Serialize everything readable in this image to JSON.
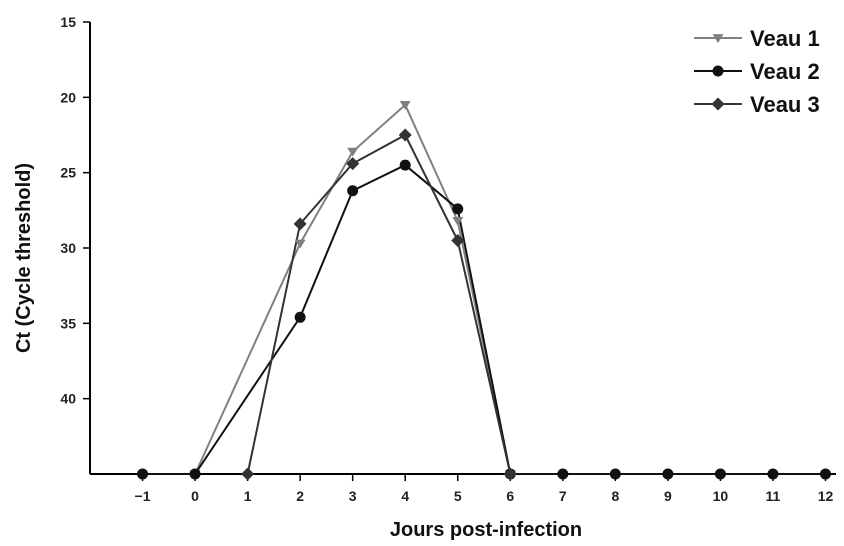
{
  "chart_data": {
    "type": "line",
    "title": "",
    "xlabel": "Jours post-infection",
    "ylabel": "Ct (Cycle threshold)",
    "x": [
      -1,
      0,
      1,
      2,
      3,
      4,
      5,
      6,
      7,
      8,
      9,
      10,
      11,
      12
    ],
    "x_tick_labels": [
      "−1",
      "0",
      "1",
      "2",
      "3",
      "4",
      "5",
      "6",
      "7",
      "8",
      "9",
      "10",
      "11",
      "12"
    ],
    "y_ticks": [
      15,
      20,
      25,
      30,
      35,
      40
    ],
    "ylim": [
      15,
      45
    ],
    "y_inverted": true,
    "grid": false,
    "legend_position": "top-right",
    "series": [
      {
        "name": "Veau 1",
        "marker": "triangle-down",
        "color": "#808080",
        "points": [
          [
            0,
            45
          ],
          [
            2,
            29.7
          ],
          [
            3,
            23.6
          ],
          [
            4,
            20.5
          ],
          [
            5,
            28.2
          ],
          [
            6,
            45
          ]
        ]
      },
      {
        "name": "Veau 2",
        "marker": "circle",
        "color": "#111111",
        "points": [
          [
            -1,
            45
          ],
          [
            0,
            45
          ],
          [
            2,
            34.6
          ],
          [
            3,
            26.2
          ],
          [
            4,
            24.5
          ],
          [
            5,
            27.4
          ],
          [
            6,
            45
          ],
          [
            7,
            45
          ],
          [
            8,
            45
          ],
          [
            9,
            45
          ],
          [
            10,
            45
          ],
          [
            11,
            45
          ],
          [
            12,
            45
          ]
        ]
      },
      {
        "name": "Veau 3",
        "marker": "diamond",
        "color": "#333333",
        "points": [
          [
            1,
            45
          ],
          [
            2,
            28.4
          ],
          [
            3,
            24.4
          ],
          [
            4,
            22.5
          ],
          [
            5,
            29.5
          ],
          [
            6,
            45
          ]
        ]
      }
    ]
  }
}
